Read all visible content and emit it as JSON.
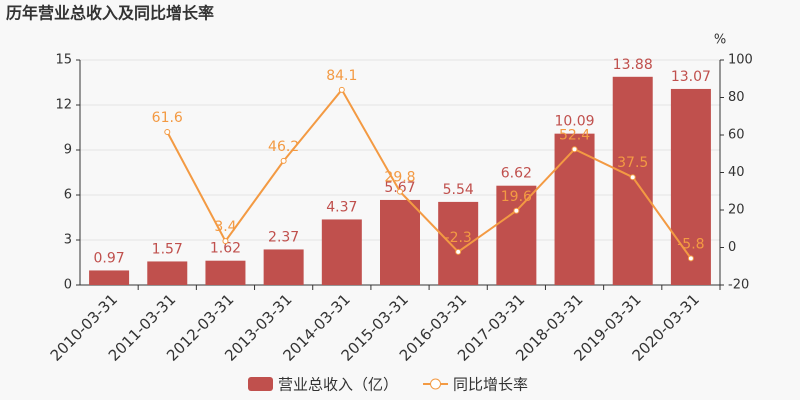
{
  "chart_data": {
    "type": "bar_line",
    "title": "历年营业总收入及同比增长率",
    "y2_label": "%",
    "categories": [
      "2010-03-31",
      "2011-03-31",
      "2012-03-31",
      "2013-03-31",
      "2014-03-31",
      "2015-03-31",
      "2016-03-31",
      "2017-03-31",
      "2018-03-31",
      "2019-03-31",
      "2020-03-31"
    ],
    "series": [
      {
        "name": "营业总收入（亿）",
        "type": "bar",
        "color": "#c0504d",
        "values": [
          0.97,
          1.57,
          1.62,
          2.37,
          4.37,
          5.67,
          5.54,
          6.62,
          10.09,
          13.88,
          13.07
        ]
      },
      {
        "name": "同比增长率",
        "type": "line",
        "axis": "y2",
        "color": "#f39a43",
        "values": [
          null,
          61.6,
          3.4,
          46.2,
          84.1,
          29.8,
          -2.3,
          19.6,
          52.4,
          37.5,
          -5.8
        ]
      }
    ],
    "ylim": [
      0,
      15
    ],
    "yticks": [
      0,
      3,
      6,
      9,
      12,
      15
    ],
    "y2lim": [
      -20,
      100
    ],
    "y2ticks": [
      -20,
      0,
      20,
      40,
      60,
      80,
      100
    ],
    "grid": true
  }
}
